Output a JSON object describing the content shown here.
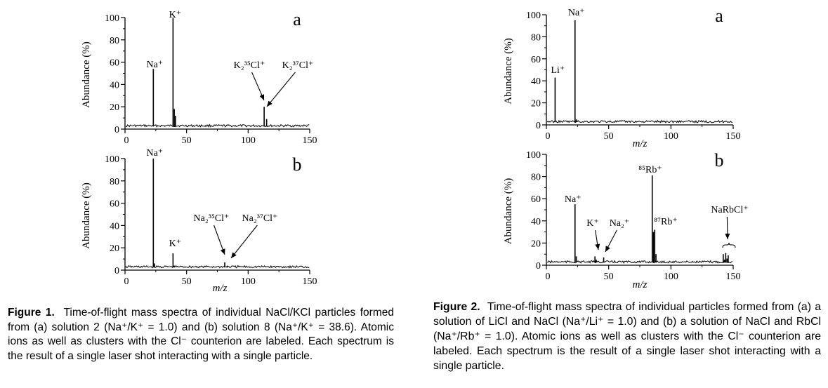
{
  "chart_data": [
    {
      "id": "fig1a",
      "type": "line",
      "panel_label": "a",
      "xlabel": "",
      "ylabel": "Abundance (%)",
      "xlim": [
        0,
        150
      ],
      "ylim": [
        0,
        100
      ],
      "xticks": [
        0,
        50,
        100,
        150
      ],
      "yticks": [
        0,
        20,
        40,
        60,
        80,
        100
      ],
      "baseline": 3,
      "peaks": [
        {
          "x": 23,
          "y": 54
        },
        {
          "x": 39,
          "y": 100
        },
        {
          "x": 40,
          "y": 18
        },
        {
          "x": 41,
          "y": 12
        },
        {
          "x": 113,
          "y": 20
        },
        {
          "x": 115,
          "y": 9
        }
      ],
      "labels": [
        {
          "text": "Na⁺",
          "x": 23
        },
        {
          "text": "K⁺",
          "x": 39
        },
        {
          "text": "K₂³⁵Cl⁺",
          "x": 113
        },
        {
          "text": "K₂³⁷Cl⁺",
          "x": 115
        }
      ]
    },
    {
      "id": "fig1b",
      "type": "line",
      "panel_label": "b",
      "xlabel": "m/z",
      "ylabel": "Abundance (%)",
      "xlim": [
        0,
        150
      ],
      "ylim": [
        0,
        100
      ],
      "xticks": [
        0,
        50,
        100,
        150
      ],
      "yticks": [
        0,
        20,
        40,
        60,
        80,
        100
      ],
      "xticklabels_shown": true,
      "baseline": 3,
      "peaks": [
        {
          "x": 23,
          "y": 100
        },
        {
          "x": 24,
          "y": 6
        },
        {
          "x": 39,
          "y": 15
        },
        {
          "x": 40,
          "y": 4
        },
        {
          "x": 81,
          "y": 7
        },
        {
          "x": 83,
          "y": 4
        }
      ],
      "labels": [
        {
          "text": "Na⁺",
          "x": 23
        },
        {
          "text": "K⁺",
          "x": 39
        },
        {
          "text": "Na₂³⁵Cl⁺",
          "x": 81
        },
        {
          "text": "Na₂³⁷Cl⁺",
          "x": 83
        }
      ]
    },
    {
      "id": "fig2a",
      "type": "line",
      "panel_label": "a",
      "xlabel": "m/z",
      "ylabel": "Abundance (%)",
      "xlim": [
        0,
        150
      ],
      "ylim": [
        0,
        100
      ],
      "xticks": [
        0,
        50,
        100,
        150
      ],
      "yticks": [
        0,
        20,
        40,
        60,
        80,
        100
      ],
      "baseline": 3,
      "peaks": [
        {
          "x": 7,
          "y": 43
        },
        {
          "x": 23,
          "y": 95
        },
        {
          "x": 24,
          "y": 5
        }
      ],
      "labels": [
        {
          "text": "Li⁺",
          "x": 7
        },
        {
          "text": "Na⁺",
          "x": 23
        }
      ]
    },
    {
      "id": "fig2b",
      "type": "line",
      "panel_label": "b",
      "xlabel": "m/z",
      "ylabel": "Abundance (%)",
      "xlim": [
        0,
        150
      ],
      "ylim": [
        0,
        100
      ],
      "xticks": [
        0,
        50,
        100,
        150
      ],
      "yticks": [
        0,
        20,
        40,
        60,
        80,
        100
      ],
      "baseline": 3,
      "peaks": [
        {
          "x": 23,
          "y": 55
        },
        {
          "x": 24,
          "y": 8
        },
        {
          "x": 39,
          "y": 8
        },
        {
          "x": 40,
          "y": 5
        },
        {
          "x": 46,
          "y": 7
        },
        {
          "x": 85,
          "y": 81
        },
        {
          "x": 86,
          "y": 30
        },
        {
          "x": 87,
          "y": 32
        },
        {
          "x": 88,
          "y": 10
        },
        {
          "x": 142,
          "y": 10
        },
        {
          "x": 143,
          "y": 5
        },
        {
          "x": 144,
          "y": 11
        },
        {
          "x": 145,
          "y": 6
        },
        {
          "x": 146,
          "y": 9
        }
      ],
      "labels": [
        {
          "text": "Na⁺",
          "x": 23
        },
        {
          "text": "K⁺",
          "x": 39
        },
        {
          "text": "Na₂⁺",
          "x": 46
        },
        {
          "text": "⁸⁵Rb⁺",
          "x": 85
        },
        {
          "text": "⁸⁷Rb⁺",
          "x": 87
        },
        {
          "text": "NaRbCl⁺",
          "x": 144
        }
      ]
    }
  ],
  "captions": {
    "fig1": {
      "label": "Figure 1.",
      "text": "Time-of-flight mass spectra of individual NaCl/KCl particles formed from (a) solution 2 (Na⁺/K⁺ = 1.0) and (b) solution 8 (Na⁺/K⁺ = 38.6). Atomic ions as well as clusters with the Cl⁻ counterion are labeled. Each spectrum is the result of a single laser shot interacting with a single particle."
    },
    "fig2": {
      "label": "Figure 2.",
      "text": "Time-of-flight mass spectra of individual particles formed from (a) a solution of LiCl and NaCl (Na⁺/Li⁺ = 1.0) and (b) a solution of NaCl and RbCl (Na⁺/Rb⁺ = 1.0). Atomic ions as well as clusters with the Cl⁻ counterion are labeled. Each spectrum is the result of a single laser shot interacting with a single particle."
    }
  }
}
